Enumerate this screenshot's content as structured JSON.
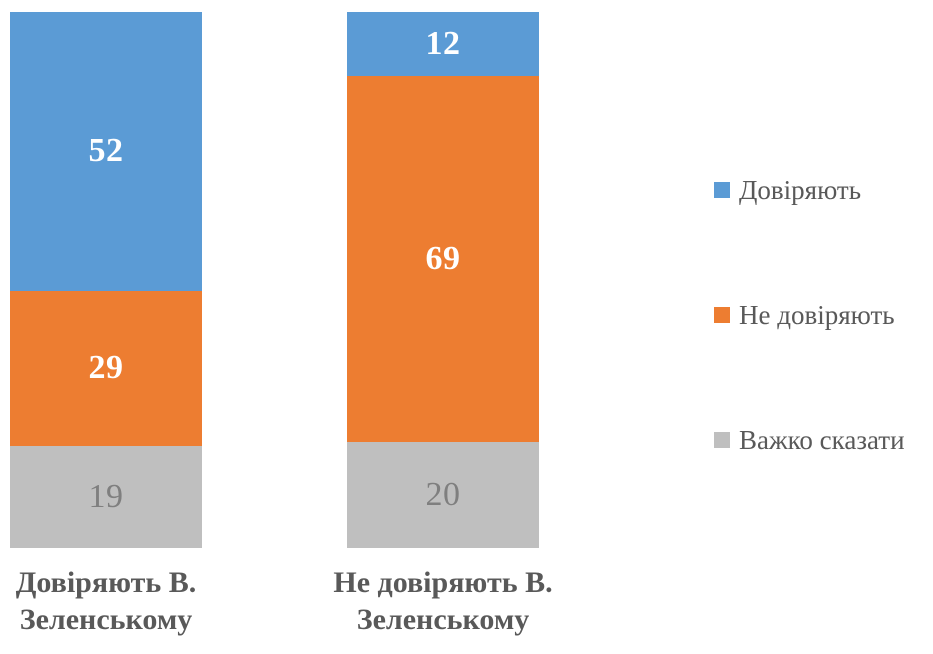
{
  "chart_data": {
    "type": "bar",
    "variant": "stacked-column-100",
    "title": "",
    "xlabel": "",
    "ylabel": "",
    "ylim": [
      0,
      100
    ],
    "grid": false,
    "axes_visible": false,
    "legend_position": "right",
    "background_color": "#FFFFFF",
    "text_color": "#595959",
    "categories": [
      "Довіряють В. Зеленському",
      "Не довіряють В. Зеленському"
    ],
    "series": [
      {
        "name": "Довіряють",
        "color": "#5B9BD5",
        "label_color": "#FFFFFF",
        "label_bold": true,
        "values": [
          52,
          12
        ]
      },
      {
        "name": "Не довіряють",
        "color": "#ED7D31",
        "label_color": "#FFFFFF",
        "label_bold": true,
        "values": [
          29,
          69
        ]
      },
      {
        "name": "Важко сказати",
        "color": "#BFBFBF",
        "label_color": "#7F7F7F",
        "label_bold": false,
        "values": [
          19,
          20
        ]
      }
    ]
  }
}
